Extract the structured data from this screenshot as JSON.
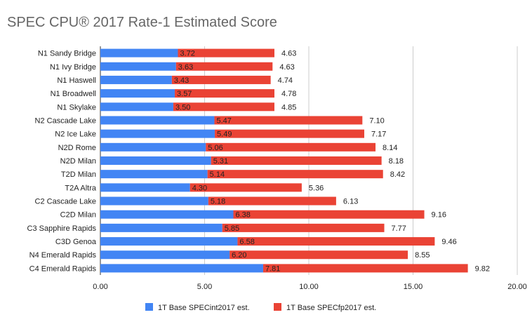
{
  "chart_data": {
    "type": "bar",
    "orientation": "horizontal",
    "stacked": true,
    "title": "SPEC CPU® 2017 Rate-1 Estimated Score",
    "categories": [
      "N1 Sandy Bridge",
      "N1 Ivy Bridge",
      "N1 Haswell",
      "N1 Broadwell",
      "N1 Skylake",
      "N2 Cascade Lake",
      "N2 Ice Lake",
      "N2D Rome",
      "N2D Milan",
      "T2D Milan",
      "T2A Altra",
      "C2 Cascade Lake",
      "C2D Milan",
      "C3 Sapphire Rapids",
      "C3D Genoa",
      "N4 Emerald Rapids",
      "C4 Emerald Rapids"
    ],
    "series": [
      {
        "name": "1T Base SPECint2017 est.",
        "color": "#4285f4",
        "values": [
          3.72,
          3.63,
          3.43,
          3.57,
          3.5,
          5.47,
          5.49,
          5.06,
          5.31,
          5.14,
          4.3,
          5.18,
          6.38,
          5.85,
          6.58,
          6.2,
          7.81
        ],
        "labels": [
          "3.72",
          "3.63",
          "3.43",
          "3.57",
          "3.50",
          "5.47",
          "5.49",
          "5.06",
          "5.31",
          "5.14",
          "4.30",
          "5.18",
          "6.38",
          "5.85",
          "6.58",
          "6.20",
          "7.81"
        ]
      },
      {
        "name": "1T Base SPECfp2017 est.",
        "color": "#ea4335",
        "values": [
          4.63,
          4.63,
          4.74,
          4.78,
          4.85,
          7.1,
          7.17,
          8.14,
          8.18,
          8.42,
          5.36,
          6.13,
          9.16,
          7.77,
          9.46,
          8.55,
          9.82
        ],
        "labels": [
          "4.63",
          "4.63",
          "4.74",
          "4.78",
          "4.85",
          "7.10",
          "7.17",
          "8.14",
          "8.18",
          "8.42",
          "5.36",
          "6.13",
          "9.16",
          "7.77",
          "9.46",
          "8.55",
          "9.82"
        ]
      }
    ],
    "xlim": [
      0,
      20
    ],
    "xticks": [
      0,
      5,
      10,
      15,
      20
    ],
    "xtick_labels": [
      "0.00",
      "5.00",
      "10.00",
      "15.00",
      "20.00"
    ],
    "xlabel": "",
    "ylabel": "",
    "grid": true,
    "legend_position": "bottom"
  }
}
